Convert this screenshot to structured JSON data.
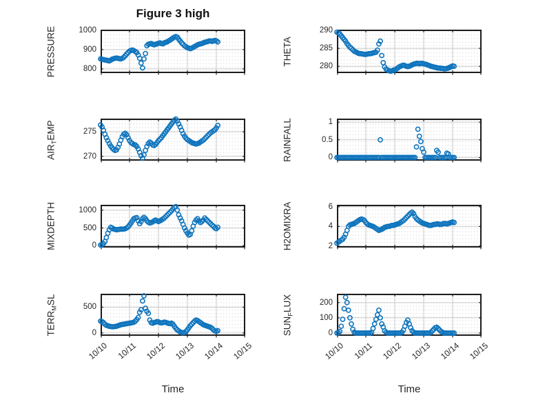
{
  "chart_data": {
    "type": "scatter",
    "figure_title": "Figure 3 high",
    "xlabel": "Time",
    "marker": {
      "shape": "open-circle",
      "color": "#0f74bd",
      "radius": 3.1,
      "stroke_width": 1.6
    },
    "grid": {
      "major": true,
      "minor_dotted": true,
      "major_color": "#c9c9c9",
      "minor_dot_color": "#c8c8c8",
      "box_color": "#1c1c1c"
    },
    "x_tick_labels": [
      "10/10",
      "10/11",
      "10/12",
      "10/13",
      "10/14",
      "10/15"
    ],
    "x_tick_days": [
      0,
      1,
      2,
      3,
      4,
      5
    ],
    "xlim_days": [
      0,
      5
    ],
    "x_days": [
      0,
      0.05,
      0.1,
      0.15,
      0.2,
      0.25,
      0.3,
      0.35,
      0.4,
      0.45,
      0.5,
      0.55,
      0.6,
      0.65,
      0.7,
      0.75,
      0.8,
      0.85,
      0.9,
      0.95,
      1,
      1.05,
      1.1,
      1.15,
      1.2,
      1.25,
      1.3,
      1.35,
      1.4,
      1.45,
      1.5,
      1.55,
      1.6,
      1.65,
      1.7,
      1.75,
      1.8,
      1.85,
      1.9,
      1.95,
      2,
      2.05,
      2.1,
      2.15,
      2.2,
      2.25,
      2.3,
      2.35,
      2.4,
      2.45,
      2.5,
      2.55,
      2.6,
      2.65,
      2.7,
      2.75,
      2.8,
      2.85,
      2.9,
      2.95,
      3,
      3.05,
      3.1,
      3.15,
      3.2,
      3.25,
      3.3,
      3.35,
      3.4,
      3.45,
      3.5,
      3.55,
      3.6,
      3.65,
      3.7,
      3.75,
      3.8,
      3.85,
      3.9,
      3.95,
      4,
      4.05
    ],
    "subplots": [
      {
        "name": "PRESSURE",
        "row": 0,
        "col": 0,
        "label_parts": [
          {
            "text": "PRESSURE",
            "sub": false
          }
        ],
        "ylim": [
          778,
          1004
        ],
        "ytick_values": [
          800,
          900,
          1000
        ],
        "ytick_labels": [
          "800",
          "900",
          "1000"
        ],
        "values": [
          852,
          850,
          848,
          846,
          845,
          843,
          842,
          845,
          850,
          853,
          855,
          856,
          855,
          853,
          852,
          855,
          860,
          868,
          877,
          885,
          892,
          896,
          898,
          895,
          890,
          885,
          872,
          855,
          830,
          805,
          852,
          880,
          920,
          928,
          930,
          932,
          928,
          925,
          928,
          930,
          933,
          935,
          932,
          930,
          935,
          938,
          940,
          945,
          950,
          955,
          960,
          965,
          968,
          965,
          955,
          945,
          935,
          928,
          920,
          915,
          910,
          908,
          905,
          908,
          912,
          916,
          920,
          925,
          928,
          930,
          932,
          935,
          938,
          940,
          942,
          945,
          945,
          943,
          945,
          948,
          945,
          940
        ]
      },
      {
        "name": "THETA",
        "row": 0,
        "col": 1,
        "label_parts": [
          {
            "text": "THETA",
            "sub": false
          }
        ],
        "ylim": [
          278.1,
          290.2
        ],
        "ytick_values": [
          280,
          285,
          290
        ],
        "ytick_labels": [
          "280",
          "285",
          "290"
        ],
        "values": [
          289.5,
          289.3,
          289,
          288.5,
          288,
          287.5,
          287,
          286.3,
          285.8,
          285.3,
          285,
          284.6,
          284.2,
          284,
          283.8,
          283.6,
          283.5,
          283.5,
          283.4,
          283.3,
          283.3,
          283.4,
          283.5,
          283.5,
          283.6,
          283.7,
          283.8,
          283.9,
          284.5,
          286.2,
          287,
          283,
          281,
          279.8,
          279.2,
          279,
          278.8,
          278.6,
          278.7,
          278.9,
          279,
          279.2,
          279.5,
          279.8,
          280,
          280.2,
          280.3,
          280.2,
          280,
          279.9,
          280,
          280.2,
          280.4,
          280.6,
          280.7,
          280.8,
          280.8,
          280.7,
          280.8,
          280.8,
          280.7,
          280.6,
          280.5,
          280.3,
          280.2,
          280,
          279.9,
          279.8,
          279.7,
          279.6,
          279.5,
          279.5,
          279.4,
          279.4,
          279.3,
          279.3,
          279.4,
          279.5,
          279.7,
          279.9,
          280.1,
          280
        ]
      },
      {
        "name": "AIR_TEMP",
        "row": 1,
        "col": 0,
        "label_parts": [
          {
            "text": "AIR",
            "sub": false
          },
          {
            "text": "T",
            "sub": true
          },
          {
            "text": "EMP",
            "sub": false
          }
        ],
        "ylim": [
          269.1,
          277.7
        ],
        "ytick_values": [
          270,
          275
        ],
        "ytick_labels": [
          "270",
          "275"
        ],
        "values": [
          276.4,
          276,
          275.3,
          274.5,
          273.8,
          273.2,
          272.6,
          272.1,
          271.7,
          271.4,
          271.2,
          271.3,
          271.8,
          272.5,
          273.3,
          274,
          274.5,
          274.7,
          274.4,
          273.8,
          273.2,
          272.8,
          272.6,
          272.4,
          272.3,
          272,
          271.5,
          270.8,
          270.1,
          269.6,
          270.3,
          271.2,
          272,
          272.6,
          272.9,
          272.7,
          272.3,
          272.2,
          272.4,
          272.8,
          273.2,
          273.5,
          273.8,
          274.2,
          274.6,
          275,
          275.4,
          275.8,
          276.2,
          276.6,
          277,
          277.4,
          277.6,
          277.2,
          276.6,
          276,
          275.3,
          274.6,
          274.1,
          273.7,
          273.4,
          273.2,
          273,
          272.8,
          272.7,
          272.6,
          272.5,
          272.6,
          272.7,
          272.9,
          273.1,
          273.3,
          273.6,
          273.9,
          274.2,
          274.5,
          274.8,
          275,
          275.2,
          275.4,
          275.8,
          276.3
        ]
      },
      {
        "name": "RAINFALL",
        "row": 1,
        "col": 1,
        "label_parts": [
          {
            "text": "RAINFALL",
            "sub": false
          }
        ],
        "ylim": [
          -0.09,
          1.1
        ],
        "ytick_values": [
          0,
          0.5,
          1
        ],
        "ytick_labels": [
          "0",
          "0.5",
          "1"
        ],
        "values": [
          0,
          0,
          0,
          0,
          0,
          0,
          0,
          0,
          0,
          0,
          0,
          0,
          0,
          0,
          0,
          0,
          0,
          0,
          0,
          0,
          0,
          0,
          0,
          0,
          0,
          0,
          0,
          0,
          0,
          0,
          0.5,
          0,
          0,
          0,
          0,
          0,
          0,
          0,
          0,
          0,
          0,
          0,
          0,
          0,
          0,
          0,
          0,
          0,
          0,
          0,
          0,
          0,
          0,
          0,
          0,
          0.3,
          0.8,
          0.6,
          0.45,
          0.25,
          0.15,
          0,
          0,
          0,
          0,
          0,
          0,
          0,
          0,
          0.2,
          0.15,
          0,
          0,
          0,
          0,
          0,
          0.12,
          0.1,
          0,
          0,
          0,
          0
        ]
      },
      {
        "name": "MIXDEPTH",
        "row": 2,
        "col": 0,
        "label_parts": [
          {
            "text": "MIXDEPTH",
            "sub": false
          }
        ],
        "ylim": [
          -50,
          1150
        ],
        "ytick_values": [
          0,
          500,
          1000
        ],
        "ytick_labels": [
          "0",
          "500",
          "1000"
        ],
        "values": [
          20,
          30,
          60,
          120,
          230,
          350,
          450,
          520,
          500,
          470,
          460,
          450,
          455,
          460,
          470,
          465,
          470,
          480,
          500,
          530,
          580,
          640,
          700,
          760,
          780,
          790,
          700,
          620,
          680,
          760,
          800,
          760,
          700,
          660,
          640,
          650,
          670,
          700,
          720,
          700,
          680,
          700,
          720,
          750,
          780,
          820,
          860,
          900,
          940,
          980,
          1030,
          1080,
          1100,
          1000,
          870,
          780,
          700,
          600,
          500,
          420,
          350,
          300,
          320,
          420,
          550,
          650,
          720,
          760,
          700,
          650,
          680,
          720,
          780,
          740,
          700,
          660,
          620,
          580,
          550,
          500,
          480,
          520
        ]
      },
      {
        "name": "H2OMIXRA",
        "row": 2,
        "col": 1,
        "label_parts": [
          {
            "text": "H2OMIXRA",
            "sub": false
          }
        ],
        "ylim": [
          1.85,
          6.2
        ],
        "ytick_values": [
          2,
          4,
          6
        ],
        "ytick_labels": [
          "2",
          "4",
          "6"
        ],
        "values": [
          2.3,
          2.4,
          2.5,
          2.6,
          2.7,
          2.9,
          3.2,
          3.6,
          4,
          4.15,
          4.2,
          4.25,
          4.3,
          4.4,
          4.5,
          4.6,
          4.7,
          4.75,
          4.7,
          4.6,
          4.4,
          4.25,
          4.15,
          4.1,
          4.05,
          4,
          3.9,
          3.8,
          3.7,
          3.6,
          3.65,
          3.7,
          3.8,
          3.9,
          3.95,
          4,
          4,
          4.05,
          4.1,
          4.1,
          4.15,
          4.2,
          4.25,
          4.3,
          4.4,
          4.5,
          4.6,
          4.75,
          4.9,
          5.05,
          5.2,
          5.35,
          5.45,
          5.3,
          5,
          4.8,
          4.65,
          4.55,
          4.45,
          4.35,
          4.3,
          4.25,
          4.2,
          4.15,
          4.1,
          4.1,
          4.15,
          4.2,
          4.2,
          4.25,
          4.25,
          4.2,
          4.2,
          4.25,
          4.3,
          4.3,
          4.25,
          4.3,
          4.35,
          4.4,
          4.45,
          4.4
        ]
      },
      {
        "name": "TERR_MSL",
        "row": 3,
        "col": 0,
        "label_parts": [
          {
            "text": "TERR",
            "sub": false
          },
          {
            "text": "M",
            "sub": true
          },
          {
            "text": "SL",
            "sub": false
          }
        ],
        "ylim": [
          -55,
          760
        ],
        "ytick_values": [
          0,
          500
        ],
        "ytick_labels": [
          "0",
          "500"
        ],
        "values": [
          230,
          220,
          200,
          170,
          150,
          140,
          130,
          125,
          120,
          120,
          125,
          130,
          140,
          150,
          160,
          165,
          170,
          175,
          180,
          185,
          190,
          195,
          200,
          210,
          230,
          260,
          300,
          400,
          450,
          620,
          720,
          480,
          420,
          380,
          250,
          200,
          190,
          200,
          210,
          220,
          215,
          200,
          195,
          200,
          210,
          205,
          195,
          185,
          180,
          190,
          170,
          130,
          90,
          60,
          40,
          20,
          10,
          5,
          10,
          30,
          60,
          100,
          140,
          170,
          200,
          230,
          250,
          240,
          220,
          200,
          180,
          160,
          150,
          140,
          130,
          120,
          110,
          90,
          60,
          40,
          30,
          45
        ]
      },
      {
        "name": "SUN_FLUX",
        "row": 3,
        "col": 1,
        "label_parts": [
          {
            "text": "SUN",
            "sub": false
          },
          {
            "text": "F",
            "sub": true
          },
          {
            "text": "LUX",
            "sub": false
          }
        ],
        "ylim": [
          -18,
          258
        ],
        "ytick_values": [
          0,
          100,
          200
        ],
        "ytick_labels": [
          "0",
          "100",
          "200"
        ],
        "values": [
          0,
          2,
          10,
          45,
          90,
          160,
          235,
          200,
          150,
          100,
          60,
          25,
          5,
          0,
          0,
          0,
          0,
          0,
          0,
          0,
          0,
          0,
          0,
          0,
          5,
          30,
          60,
          90,
          120,
          150,
          100,
          60,
          40,
          15,
          5,
          0,
          0,
          0,
          0,
          0,
          0,
          0,
          0,
          0,
          0,
          5,
          20,
          45,
          70,
          85,
          60,
          35,
          15,
          5,
          0,
          0,
          0,
          0,
          0,
          0,
          0,
          0,
          0,
          0,
          0,
          5,
          15,
          25,
          35,
          38,
          30,
          20,
          10,
          5,
          0,
          0,
          0,
          0,
          0,
          0,
          0,
          0
        ]
      }
    ]
  }
}
